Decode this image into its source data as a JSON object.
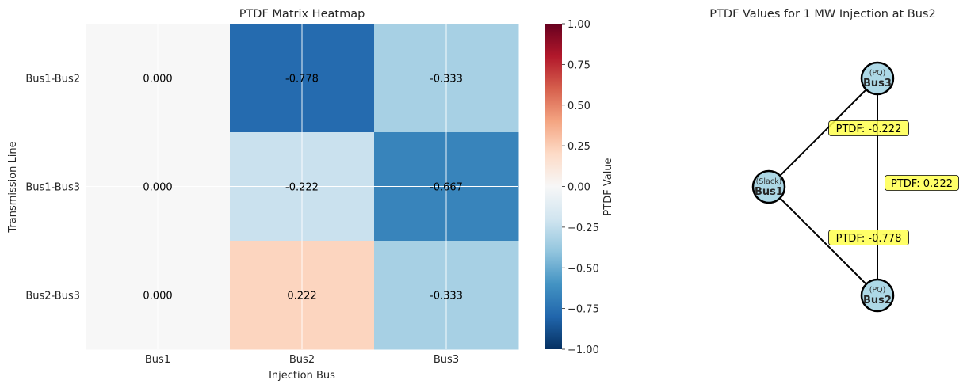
{
  "chart_data": [
    {
      "type": "heatmap",
      "title": "PTDF Matrix Heatmap",
      "xlabel": "Injection Bus",
      "ylabel": "Transmission Line",
      "x_categories": [
        "Bus1",
        "Bus2",
        "Bus3"
      ],
      "y_categories": [
        "Bus1-Bus2",
        "Bus1-Bus3",
        "Bus2-Bus3"
      ],
      "values": [
        [
          0.0,
          -0.778,
          -0.333
        ],
        [
          0.0,
          -0.222,
          -0.667
        ],
        [
          0.0,
          0.222,
          -0.333
        ]
      ],
      "cell_labels": [
        [
          "0.000",
          "-0.778",
          "-0.333"
        ],
        [
          "0.000",
          "-0.222",
          "-0.667"
        ],
        [
          "0.000",
          "0.222",
          "-0.333"
        ]
      ],
      "colormap": "RdBu_r",
      "vmin": -1.0,
      "vmax": 1.0,
      "grid": true,
      "colorbar": {
        "label": "PTDF Value",
        "ticks": [
          1.0,
          0.75,
          0.5,
          0.25,
          0.0,
          -0.25,
          -0.5,
          -0.75,
          -1.0
        ],
        "tick_labels": [
          "1.00",
          "0.75",
          "0.50",
          "0.25",
          "0.00",
          "−0.25",
          "−0.50",
          "−0.75",
          "−1.00"
        ]
      }
    },
    {
      "type": "network",
      "title": "PTDF Values for 1 MW Injection at Bus2",
      "nodes": [
        {
          "id": "Bus1",
          "name": "Bus1",
          "role": "(Slack)"
        },
        {
          "id": "Bus2",
          "name": "Bus2",
          "role": "(PQ)"
        },
        {
          "id": "Bus3",
          "name": "Bus3",
          "role": "(PQ)"
        }
      ],
      "edges": [
        {
          "from": "Bus1",
          "to": "Bus3",
          "label": "PTDF: -0.222"
        },
        {
          "from": "Bus2",
          "to": "Bus3",
          "label": "PTDF: 0.222"
        },
        {
          "from": "Bus1",
          "to": "Bus2",
          "label": "PTDF: -0.778"
        }
      ],
      "node_color": "#add8e6",
      "label_box_color": "#ffff4d"
    }
  ]
}
